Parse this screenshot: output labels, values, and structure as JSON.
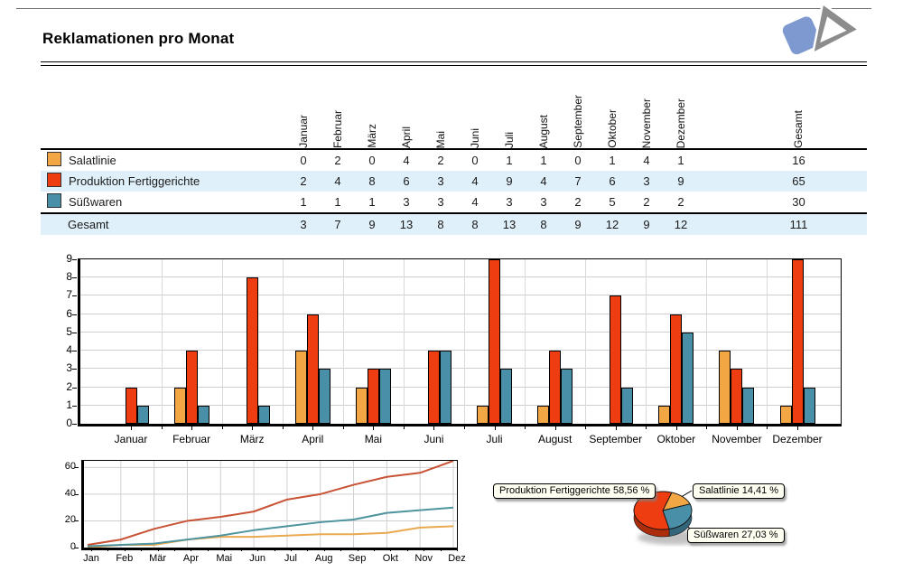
{
  "page": {
    "title": "Reklamationen pro Monat"
  },
  "colors": {
    "salatlinie": "#F2A644",
    "produktion": "#EE3D11",
    "suesswaren": "#4A8FA8",
    "salatlinie_dark": "#BA7B26",
    "produktion_dark": "#AC2D0C",
    "suesswaren_dark": "#33667A",
    "salatlinie_line": "#E9A94F",
    "produktion_line": "#C85335",
    "suesswaren_line": "#4E939E",
    "row_alt_bg": "#DFF0FA",
    "grid": "#CFCFCF"
  },
  "table": {
    "months": [
      "Januar",
      "Februar",
      "März",
      "April",
      "Mai",
      "Juni",
      "Juli",
      "August",
      "September",
      "Oktober",
      "November",
      "Dezember"
    ],
    "total_col_label": "Gesamt",
    "rows": [
      {
        "label": "Salatlinie",
        "color_key": "salatlinie",
        "values": [
          0,
          2,
          0,
          4,
          2,
          0,
          1,
          1,
          0,
          1,
          4,
          1
        ],
        "total": 16
      },
      {
        "label": "Produktion Fertiggerichte",
        "color_key": "produktion",
        "values": [
          2,
          4,
          8,
          6,
          3,
          4,
          9,
          4,
          7,
          6,
          3,
          9
        ],
        "total": 65
      },
      {
        "label": "Süßwaren",
        "color_key": "suesswaren",
        "values": [
          1,
          1,
          1,
          3,
          3,
          4,
          3,
          3,
          2,
          5,
          2,
          2
        ],
        "total": 30
      }
    ],
    "total_row": {
      "label": "Gesamt",
      "values": [
        3,
        7,
        9,
        13,
        8,
        8,
        13,
        8,
        9,
        12,
        9,
        12
      ],
      "total": 111
    }
  },
  "chart_data": [
    {
      "type": "bar",
      "categories": [
        "Januar",
        "Februar",
        "März",
        "April",
        "Mai",
        "Juni",
        "Juli",
        "August",
        "September",
        "Oktober",
        "November",
        "Dezember"
      ],
      "series": [
        {
          "name": "Salatlinie",
          "color_key": "salatlinie",
          "values": [
            0,
            2,
            0,
            4,
            2,
            0,
            1,
            1,
            0,
            1,
            4,
            1
          ]
        },
        {
          "name": "Produktion Fertiggerichte",
          "color_key": "produktion",
          "values": [
            2,
            4,
            8,
            6,
            3,
            4,
            9,
            4,
            7,
            6,
            3,
            9
          ]
        },
        {
          "name": "Süßwaren",
          "color_key": "suesswaren",
          "values": [
            1,
            1,
            1,
            3,
            3,
            4,
            3,
            3,
            2,
            5,
            2,
            2
          ]
        }
      ],
      "ylim": [
        0,
        9
      ],
      "yticks": [
        0,
        1,
        2,
        3,
        4,
        5,
        6,
        7,
        8,
        9
      ],
      "grid": "on",
      "legend_position": "none"
    },
    {
      "type": "line",
      "x": [
        "Jan",
        "Feb",
        "Mär",
        "Apr",
        "Mai",
        "Jun",
        "Jul",
        "Aug",
        "Sep",
        "Okt",
        "Nov",
        "Dez"
      ],
      "series": [
        {
          "name": "Salatlinie",
          "color_key": "salatlinie_line",
          "values": [
            0,
            2,
            2,
            6,
            8,
            8,
            9,
            10,
            10,
            11,
            15,
            16
          ]
        },
        {
          "name": "Produktion Fertiggerichte",
          "color_key": "produktion_line",
          "values": [
            2,
            6,
            14,
            20,
            23,
            27,
            36,
            40,
            47,
            53,
            56,
            65
          ]
        },
        {
          "name": "Süßwaren",
          "color_key": "suesswaren_line",
          "values": [
            1,
            2,
            3,
            6,
            9,
            13,
            16,
            19,
            21,
            26,
            28,
            30
          ]
        }
      ],
      "ylim": [
        0,
        65
      ],
      "yticks": [
        0,
        20,
        40,
        60
      ],
      "grid": "on",
      "legend_position": "none"
    },
    {
      "type": "pie",
      "start_angle_deg": 18,
      "slices": [
        {
          "name": "Salatlinie",
          "pct": 14.41,
          "color_key": "salatlinie",
          "label": "Salatlinie 14,41 %"
        },
        {
          "name": "Süßwaren",
          "pct": 27.03,
          "color_key": "suesswaren",
          "label": "Süßwaren 27,03 %"
        },
        {
          "name": "Produktion Fertiggerichte",
          "pct": 58.56,
          "color_key": "produktion",
          "label": "Produktion Fertiggerichte 58,56 %"
        }
      ]
    }
  ]
}
